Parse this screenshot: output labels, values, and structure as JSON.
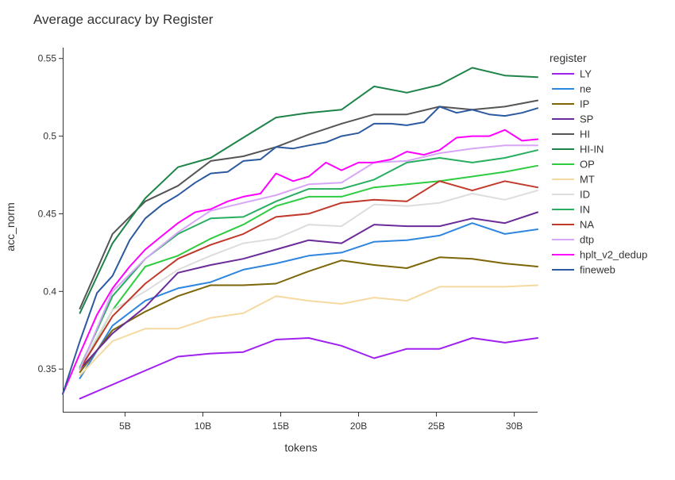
{
  "chart_data": {
    "type": "line",
    "title": "Average accuracy by Register",
    "xlabel": "tokens",
    "ylabel": "acc_norm",
    "xlim": [
      1,
      31.5
    ],
    "ylim": [
      0.322,
      0.557
    ],
    "grid": false,
    "legend_title": "register",
    "legend_position": "right",
    "x_ticks": [
      {
        "value": 5,
        "label": "5B"
      },
      {
        "value": 10,
        "label": "10B"
      },
      {
        "value": 15,
        "label": "15B"
      },
      {
        "value": 20,
        "label": "20B"
      },
      {
        "value": 25,
        "label": "25B"
      },
      {
        "value": 30,
        "label": "30B"
      }
    ],
    "y_ticks": [
      {
        "value": 0.35,
        "label": "0.35"
      },
      {
        "value": 0.4,
        "label": "0.4"
      },
      {
        "value": 0.45,
        "label": "0.45"
      },
      {
        "value": 0.5,
        "label": "0.5"
      },
      {
        "value": 0.55,
        "label": "0.55"
      }
    ],
    "series": [
      {
        "name": "LY",
        "color": "#a020f0",
        "x": [
          2.1,
          8.4,
          10.5,
          12.6,
          14.7,
          16.8,
          18.9,
          21,
          23.1,
          25.2,
          27.3,
          29.4,
          31.5
        ],
        "y": [
          0.331,
          0.358,
          0.36,
          0.361,
          0.369,
          0.37,
          0.365,
          0.357,
          0.363,
          0.363,
          0.37,
          0.367,
          0.37
        ]
      },
      {
        "name": "ne",
        "color": "#2e86de",
        "x": [
          2.1,
          4.2,
          6.3,
          8.4,
          10.5,
          12.6,
          14.7,
          16.8,
          18.9,
          21,
          23.1,
          25.2,
          27.3,
          29.4,
          31.5
        ],
        "y": [
          0.344,
          0.378,
          0.394,
          0.402,
          0.406,
          0.414,
          0.418,
          0.423,
          0.425,
          0.432,
          0.433,
          0.436,
          0.444,
          0.437,
          0.44
        ]
      },
      {
        "name": "IP",
        "color": "#7d6608",
        "x": [
          2.1,
          4.2,
          6.3,
          8.4,
          10.5,
          12.6,
          14.7,
          16.8,
          18.9,
          21,
          23.1,
          25.2,
          27.3,
          29.4,
          31.5
        ],
        "y": [
          0.348,
          0.375,
          0.387,
          0.397,
          0.404,
          0.404,
          0.405,
          0.413,
          0.42,
          0.417,
          0.415,
          0.422,
          0.421,
          0.418,
          0.416
        ]
      },
      {
        "name": "SP",
        "color": "#6a2c9a",
        "x": [
          2.1,
          4.2,
          6.3,
          8.4,
          10.5,
          12.6,
          14.7,
          16.8,
          18.9,
          21,
          23.1,
          25.2,
          27.3,
          29.4,
          31.5
        ],
        "y": [
          0.35,
          0.373,
          0.39,
          0.412,
          0.417,
          0.421,
          0.427,
          0.433,
          0.431,
          0.443,
          0.442,
          0.442,
          0.447,
          0.444,
          0.451
        ]
      },
      {
        "name": "HI",
        "color": "#555555",
        "x": [
          2.1,
          4.2,
          6.3,
          8.4,
          10.5,
          12.6,
          14.7,
          16.8,
          18.9,
          21,
          23.1,
          25.2,
          27.3,
          29.4,
          31.5
        ],
        "y": [
          0.389,
          0.437,
          0.458,
          0.468,
          0.484,
          0.487,
          0.493,
          0.501,
          0.508,
          0.514,
          0.514,
          0.519,
          0.517,
          0.519,
          0.523
        ]
      },
      {
        "name": "HI-IN",
        "color": "#1e8449",
        "x": [
          2.1,
          4.2,
          6.3,
          8.4,
          10.5,
          12.6,
          14.7,
          16.8,
          18.9,
          21,
          23.1,
          25.2,
          27.3,
          29.4,
          31.5
        ],
        "y": [
          0.386,
          0.431,
          0.46,
          0.48,
          0.486,
          0.499,
          0.512,
          0.515,
          0.517,
          0.532,
          0.528,
          0.533,
          0.544,
          0.539,
          0.538
        ]
      },
      {
        "name": "OP",
        "color": "#2ecc40",
        "x": [
          2.1,
          4.2,
          6.3,
          8.4,
          10.5,
          12.6,
          14.7,
          16.8,
          18.9,
          21,
          23.1,
          25.2,
          27.3,
          29.4,
          31.5
        ],
        "y": [
          0.35,
          0.388,
          0.416,
          0.423,
          0.434,
          0.443,
          0.455,
          0.461,
          0.461,
          0.467,
          0.469,
          0.471,
          0.474,
          0.477,
          0.481
        ]
      },
      {
        "name": "MT",
        "color": "#f5d9a0",
        "x": [
          2.1,
          4.2,
          6.3,
          8.4,
          10.5,
          12.6,
          14.7,
          16.8,
          18.9,
          21,
          23.1,
          25.2,
          27.3,
          29.4,
          31.5
        ],
        "y": [
          0.346,
          0.368,
          0.376,
          0.376,
          0.383,
          0.386,
          0.397,
          0.394,
          0.392,
          0.396,
          0.394,
          0.403,
          0.403,
          0.403,
          0.404
        ]
      },
      {
        "name": "ID",
        "color": "#dddddd",
        "x": [
          2.1,
          4.2,
          6.3,
          8.4,
          10.5,
          12.6,
          14.7,
          16.8,
          18.9,
          21,
          23.1,
          25.2,
          27.3,
          29.4,
          31.5
        ],
        "y": [
          0.351,
          0.388,
          0.4,
          0.414,
          0.423,
          0.431,
          0.434,
          0.443,
          0.442,
          0.456,
          0.455,
          0.457,
          0.463,
          0.459,
          0.465
        ]
      },
      {
        "name": "IN",
        "color": "#27ae60",
        "x": [
          2.1,
          4.2,
          6.3,
          8.4,
          10.5,
          12.6,
          14.7,
          16.8,
          18.9,
          21,
          23.1,
          25.2,
          27.3,
          29.4,
          31.5
        ],
        "y": [
          0.351,
          0.397,
          0.421,
          0.437,
          0.447,
          0.448,
          0.458,
          0.466,
          0.466,
          0.472,
          0.483,
          0.486,
          0.483,
          0.486,
          0.491
        ]
      },
      {
        "name": "NA",
        "color": "#c0392b",
        "x": [
          2.1,
          4.2,
          6.3,
          8.4,
          10.5,
          12.6,
          14.7,
          16.8,
          18.9,
          21,
          23.1,
          25.2,
          27.3,
          29.4,
          31.5
        ],
        "y": [
          0.35,
          0.384,
          0.405,
          0.421,
          0.43,
          0.437,
          0.448,
          0.45,
          0.457,
          0.459,
          0.458,
          0.471,
          0.465,
          0.471,
          0.467
        ]
      },
      {
        "name": "dtp",
        "color": "#d7a6f7",
        "x": [
          2.1,
          4.2,
          6.3,
          8.4,
          10.5,
          12.6,
          14.7,
          16.8,
          18.9,
          21,
          23.1,
          25.2,
          27.3,
          29.4,
          31.5
        ],
        "y": [
          0.35,
          0.4,
          0.421,
          0.438,
          0.452,
          0.457,
          0.462,
          0.469,
          0.47,
          0.483,
          0.484,
          0.489,
          0.492,
          0.494,
          0.494
        ]
      },
      {
        "name": "hplt_v2_dedup",
        "color": "#ff00ff",
        "x": [
          1,
          2.1,
          3.2,
          4.2,
          5.3,
          6.3,
          7.4,
          8.4,
          9.5,
          10.5,
          11.6,
          12.6,
          13.7,
          14.7,
          15.8,
          16.8,
          17.9,
          18.9,
          20,
          21,
          22.1,
          23.1,
          24.2,
          25.2,
          26.3,
          27.3,
          28.4,
          29.4,
          30.5,
          31.5
        ],
        "y": [
          0.334,
          0.36,
          0.385,
          0.402,
          0.416,
          0.427,
          0.436,
          0.444,
          0.451,
          0.453,
          0.458,
          0.461,
          0.463,
          0.476,
          0.471,
          0.474,
          0.483,
          0.478,
          0.483,
          0.483,
          0.485,
          0.49,
          0.488,
          0.491,
          0.499,
          0.5,
          0.5,
          0.504,
          0.497,
          0.498
        ]
      },
      {
        "name": "fineweb",
        "color": "#2c5aa0",
        "x": [
          1,
          2.1,
          3.2,
          4.2,
          5.3,
          6.3,
          7.4,
          8.4,
          9.5,
          10.5,
          11.6,
          12.6,
          13.7,
          14.7,
          15.8,
          16.8,
          17.9,
          18.9,
          20,
          21,
          22.1,
          23.1,
          24.2,
          25.2,
          26.3,
          27.3,
          28.4,
          29.4,
          30.5,
          31.5
        ],
        "y": [
          0.334,
          0.368,
          0.399,
          0.41,
          0.433,
          0.447,
          0.456,
          0.462,
          0.47,
          0.476,
          0.477,
          0.484,
          0.485,
          0.493,
          0.492,
          0.494,
          0.496,
          0.5,
          0.502,
          0.508,
          0.508,
          0.507,
          0.509,
          0.519,
          0.515,
          0.517,
          0.514,
          0.513,
          0.515,
          0.518
        ]
      }
    ]
  }
}
